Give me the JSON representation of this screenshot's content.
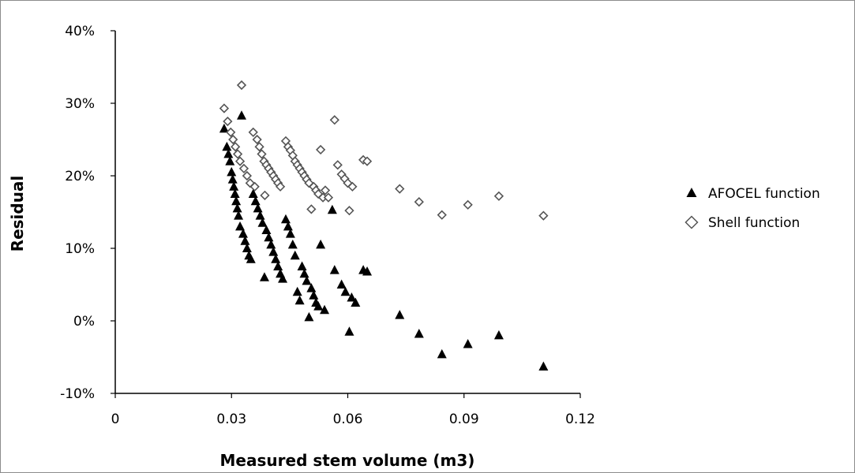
{
  "chart_data": {
    "type": "scatter",
    "title": "",
    "xlabel": "Measured stem volume (m3)",
    "ylabel": "Residual",
    "xlim": [
      0,
      0.12
    ],
    "ylim": [
      -10,
      40
    ],
    "x_ticks": [
      "0",
      "0.03",
      "0.06",
      "0.09",
      "0.12"
    ],
    "y_ticks": [
      "-10%",
      "0%",
      "10%",
      "20%",
      "30%",
      "40%"
    ],
    "grid": false,
    "legend_position": "right",
    "series": [
      {
        "name": "AFOCEL function",
        "marker": "filled-triangle",
        "color": "#000000",
        "points": [
          [
            0.0281,
            26.5
          ],
          [
            0.0288,
            24.0
          ],
          [
            0.0292,
            23.0
          ],
          [
            0.0296,
            22.0
          ],
          [
            0.03,
            20.5
          ],
          [
            0.0303,
            19.5
          ],
          [
            0.0306,
            18.5
          ],
          [
            0.0309,
            17.5
          ],
          [
            0.0312,
            16.5
          ],
          [
            0.0315,
            15.5
          ],
          [
            0.0318,
            14.5
          ],
          [
            0.0322,
            13.0
          ],
          [
            0.0326,
            28.3
          ],
          [
            0.033,
            12.0
          ],
          [
            0.0335,
            11.0
          ],
          [
            0.034,
            10.0
          ],
          [
            0.0345,
            9.0
          ],
          [
            0.035,
            8.5
          ],
          [
            0.0356,
            17.5
          ],
          [
            0.0362,
            16.5
          ],
          [
            0.0368,
            15.5
          ],
          [
            0.0374,
            14.5
          ],
          [
            0.038,
            13.5
          ],
          [
            0.0385,
            6.0
          ],
          [
            0.039,
            12.5
          ],
          [
            0.0396,
            11.5
          ],
          [
            0.0402,
            10.5
          ],
          [
            0.0408,
            9.5
          ],
          [
            0.0414,
            8.5
          ],
          [
            0.042,
            7.5
          ],
          [
            0.0426,
            6.5
          ],
          [
            0.0432,
            5.8
          ],
          [
            0.044,
            14.0
          ],
          [
            0.0446,
            13.0
          ],
          [
            0.0452,
            12.0
          ],
          [
            0.0458,
            10.5
          ],
          [
            0.0464,
            9.0
          ],
          [
            0.047,
            4.0
          ],
          [
            0.0476,
            2.8
          ],
          [
            0.0482,
            7.5
          ],
          [
            0.0488,
            6.5
          ],
          [
            0.0494,
            5.5
          ],
          [
            0.05,
            0.5
          ],
          [
            0.0506,
            4.5
          ],
          [
            0.0512,
            3.5
          ],
          [
            0.0518,
            2.5
          ],
          [
            0.0524,
            2.0
          ],
          [
            0.053,
            10.5
          ],
          [
            0.054,
            1.5
          ],
          [
            0.056,
            15.3
          ],
          [
            0.0566,
            7.0
          ],
          [
            0.0584,
            5.0
          ],
          [
            0.0594,
            4.0
          ],
          [
            0.0604,
            -1.5
          ],
          [
            0.061,
            3.2
          ],
          [
            0.062,
            2.5
          ],
          [
            0.064,
            7.0
          ],
          [
            0.065,
            6.8
          ],
          [
            0.0734,
            0.8
          ],
          [
            0.0784,
            -1.8
          ],
          [
            0.0843,
            -4.6
          ],
          [
            0.091,
            -3.2
          ],
          [
            0.099,
            -2.0
          ],
          [
            0.1105,
            -6.3
          ]
        ]
      },
      {
        "name": "Shell function",
        "marker": "open-diamond",
        "color": "#000000",
        "points": [
          [
            0.0281,
            29.3
          ],
          [
            0.029,
            27.5
          ],
          [
            0.0298,
            26.0
          ],
          [
            0.0304,
            25.0
          ],
          [
            0.031,
            24.0
          ],
          [
            0.0316,
            23.0
          ],
          [
            0.0322,
            22.0
          ],
          [
            0.0326,
            32.5
          ],
          [
            0.0332,
            21.0
          ],
          [
            0.034,
            20.0
          ],
          [
            0.0348,
            19.0
          ],
          [
            0.0356,
            26.0
          ],
          [
            0.036,
            18.5
          ],
          [
            0.0366,
            25.0
          ],
          [
            0.0372,
            24.0
          ],
          [
            0.0378,
            23.0
          ],
          [
            0.0384,
            22.0
          ],
          [
            0.0386,
            17.3
          ],
          [
            0.039,
            21.5
          ],
          [
            0.0396,
            21.0
          ],
          [
            0.0402,
            20.5
          ],
          [
            0.0408,
            20.0
          ],
          [
            0.0414,
            19.5
          ],
          [
            0.042,
            19.0
          ],
          [
            0.0426,
            18.5
          ],
          [
            0.044,
            24.8
          ],
          [
            0.0446,
            24.0
          ],
          [
            0.0452,
            23.5
          ],
          [
            0.0458,
            22.8
          ],
          [
            0.0464,
            22.0
          ],
          [
            0.047,
            21.5
          ],
          [
            0.0476,
            21.0
          ],
          [
            0.0482,
            20.5
          ],
          [
            0.0488,
            20.0
          ],
          [
            0.0494,
            19.5
          ],
          [
            0.05,
            19.0
          ],
          [
            0.0506,
            15.4
          ],
          [
            0.0512,
            18.5
          ],
          [
            0.0518,
            18.0
          ],
          [
            0.0524,
            17.5
          ],
          [
            0.053,
            23.6
          ],
          [
            0.0536,
            17.0
          ],
          [
            0.0542,
            18.0
          ],
          [
            0.055,
            17.0
          ],
          [
            0.0566,
            27.7
          ],
          [
            0.0574,
            21.5
          ],
          [
            0.0584,
            20.2
          ],
          [
            0.0592,
            19.6
          ],
          [
            0.06,
            19.0
          ],
          [
            0.0604,
            15.2
          ],
          [
            0.0612,
            18.5
          ],
          [
            0.064,
            22.2
          ],
          [
            0.065,
            22.0
          ],
          [
            0.0734,
            18.2
          ],
          [
            0.0784,
            16.4
          ],
          [
            0.0843,
            14.6
          ],
          [
            0.091,
            16.0
          ],
          [
            0.099,
            17.2
          ],
          [
            0.1105,
            14.5
          ]
        ]
      }
    ]
  }
}
